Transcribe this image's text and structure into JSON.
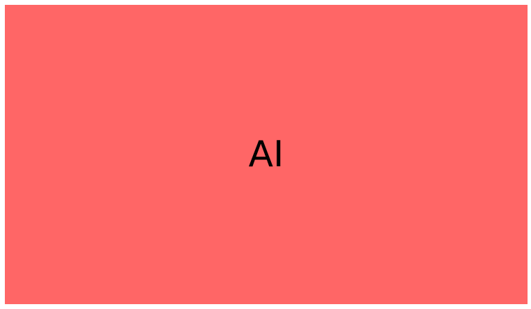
{
  "panel": {
    "label": "AI",
    "background_color": "#ff6666",
    "text_color": "#000000"
  }
}
